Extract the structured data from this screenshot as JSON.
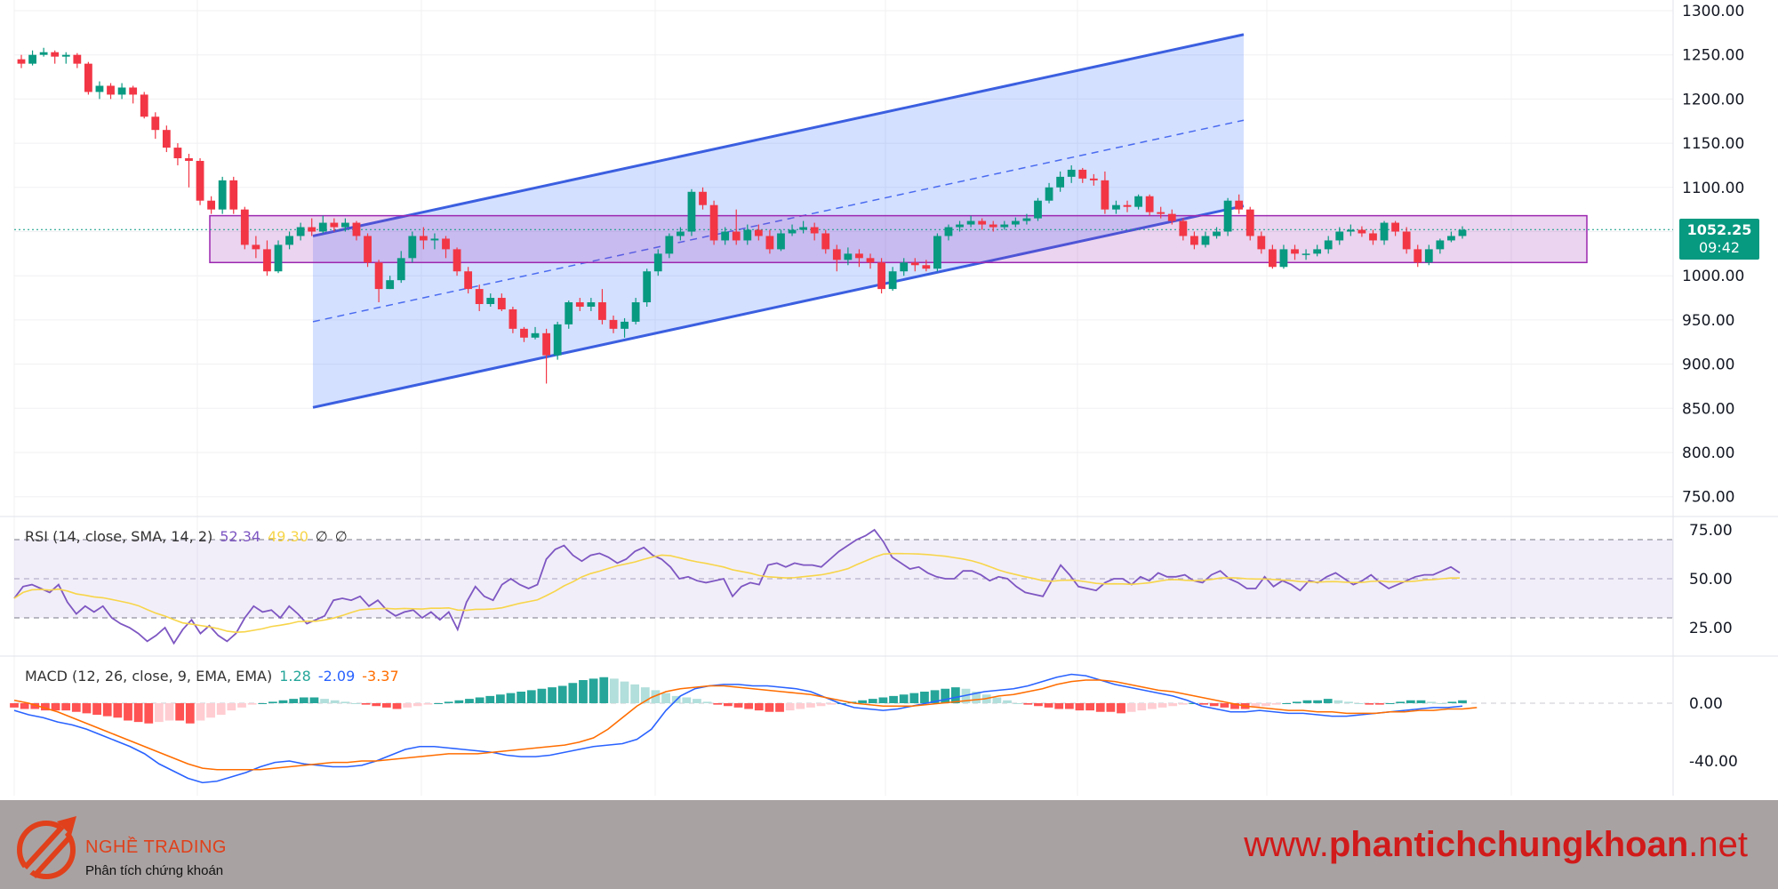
{
  "chart_data": {
    "type": "candlestick",
    "price_axis": {
      "ticks": [
        "1300.00",
        "1250.00",
        "1200.00",
        "1150.00",
        "1100.00",
        "1000.00",
        "950.00",
        "900.00",
        "850.00",
        "800.00",
        "750.00"
      ],
      "ylim": [
        730,
        1305
      ]
    },
    "last_price": {
      "value": "1052.25",
      "countdown": "09:42"
    },
    "candles": [
      [
        1245,
        1240,
        1250,
        1235
      ],
      [
        1240,
        1250,
        1255,
        1238
      ],
      [
        1250,
        1253,
        1258,
        1248
      ],
      [
        1253,
        1248,
        1255,
        1240
      ],
      [
        1248,
        1250,
        1253,
        1240
      ],
      [
        1250,
        1240,
        1252,
        1235
      ],
      [
        1240,
        1208,
        1242,
        1205
      ],
      [
        1208,
        1215,
        1220,
        1200
      ],
      [
        1215,
        1205,
        1218,
        1200
      ],
      [
        1205,
        1213,
        1218,
        1200
      ],
      [
        1213,
        1205,
        1215,
        1195
      ],
      [
        1205,
        1180,
        1208,
        1178
      ],
      [
        1180,
        1165,
        1185,
        1155
      ],
      [
        1165,
        1145,
        1170,
        1140
      ],
      [
        1145,
        1133,
        1150,
        1125
      ],
      [
        1133,
        1130,
        1138,
        1100
      ],
      [
        1130,
        1085,
        1133,
        1080
      ],
      [
        1085,
        1075,
        1090,
        1070
      ],
      [
        1075,
        1108,
        1112,
        1070
      ],
      [
        1108,
        1075,
        1112,
        1070
      ],
      [
        1075,
        1035,
        1078,
        1030
      ],
      [
        1035,
        1030,
        1045,
        1020
      ],
      [
        1030,
        1005,
        1040,
        1000
      ],
      [
        1005,
        1035,
        1040,
        1003
      ],
      [
        1035,
        1045,
        1050,
        1030
      ],
      [
        1045,
        1055,
        1060,
        1040
      ],
      [
        1055,
        1050,
        1065,
        1045
      ],
      [
        1050,
        1060,
        1068,
        1048
      ],
      [
        1060,
        1055,
        1065,
        1050
      ],
      [
        1055,
        1060,
        1065,
        1050
      ],
      [
        1060,
        1045,
        1062,
        1040
      ],
      [
        1045,
        1015,
        1048,
        1010
      ],
      [
        1015,
        985,
        1018,
        970
      ],
      [
        985,
        995,
        1000,
        985
      ],
      [
        995,
        1020,
        1028,
        992
      ],
      [
        1020,
        1045,
        1050,
        1015
      ],
      [
        1045,
        1040,
        1055,
        1030
      ],
      [
        1040,
        1042,
        1048,
        1030
      ],
      [
        1042,
        1030,
        1045,
        1020
      ],
      [
        1030,
        1005,
        1032,
        1000
      ],
      [
        1005,
        985,
        1010,
        980
      ],
      [
        985,
        968,
        990,
        960
      ],
      [
        968,
        975,
        980,
        965
      ],
      [
        975,
        962,
        980,
        960
      ],
      [
        962,
        940,
        965,
        935
      ],
      [
        940,
        930,
        942,
        925
      ],
      [
        930,
        935,
        942,
        928
      ],
      [
        935,
        910,
        940,
        878
      ],
      [
        910,
        945,
        948,
        905
      ],
      [
        945,
        970,
        972,
        940
      ],
      [
        970,
        965,
        975,
        960
      ],
      [
        965,
        970,
        975,
        960
      ],
      [
        970,
        950,
        985,
        945
      ],
      [
        950,
        940,
        955,
        935
      ],
      [
        940,
        948,
        952,
        930
      ],
      [
        948,
        970,
        975,
        945
      ],
      [
        970,
        1005,
        1008,
        965
      ],
      [
        1005,
        1025,
        1030,
        1000
      ],
      [
        1025,
        1045,
        1048,
        1020
      ],
      [
        1045,
        1050,
        1055,
        1040
      ],
      [
        1050,
        1095,
        1098,
        1045
      ],
      [
        1095,
        1080,
        1100,
        1075
      ],
      [
        1080,
        1040,
        1085,
        1035
      ],
      [
        1040,
        1050,
        1055,
        1035
      ],
      [
        1050,
        1040,
        1075,
        1035
      ],
      [
        1040,
        1052,
        1058,
        1035
      ],
      [
        1052,
        1045,
        1058,
        1040
      ],
      [
        1045,
        1030,
        1052,
        1025
      ],
      [
        1030,
        1048,
        1052,
        1028
      ],
      [
        1048,
        1052,
        1058,
        1045
      ],
      [
        1052,
        1055,
        1062,
        1048
      ],
      [
        1055,
        1048,
        1060,
        1040
      ],
      [
        1048,
        1030,
        1052,
        1025
      ],
      [
        1030,
        1018,
        1035,
        1005
      ],
      [
        1018,
        1025,
        1032,
        1012
      ],
      [
        1025,
        1020,
        1030,
        1010
      ],
      [
        1020,
        1015,
        1025,
        1008
      ],
      [
        1015,
        985,
        1020,
        980
      ],
      [
        985,
        1005,
        1010,
        983
      ],
      [
        1005,
        1015,
        1020,
        1000
      ],
      [
        1015,
        1012,
        1020,
        1005
      ],
      [
        1012,
        1008,
        1018,
        1005
      ],
      [
        1008,
        1045,
        1048,
        1005
      ],
      [
        1045,
        1055,
        1058,
        1040
      ],
      [
        1055,
        1058,
        1062,
        1050
      ],
      [
        1058,
        1062,
        1068,
        1055
      ],
      [
        1062,
        1058,
        1065,
        1052
      ],
      [
        1058,
        1055,
        1062,
        1050
      ],
      [
        1055,
        1058,
        1062,
        1052
      ],
      [
        1058,
        1062,
        1066,
        1055
      ],
      [
        1062,
        1065,
        1070,
        1058
      ],
      [
        1065,
        1085,
        1088,
        1062
      ],
      [
        1085,
        1100,
        1105,
        1082
      ],
      [
        1100,
        1112,
        1118,
        1095
      ],
      [
        1112,
        1120,
        1125,
        1105
      ],
      [
        1120,
        1110,
        1122,
        1105
      ],
      [
        1110,
        1108,
        1115,
        1102
      ],
      [
        1108,
        1075,
        1118,
        1070
      ],
      [
        1075,
        1080,
        1085,
        1070
      ],
      [
        1080,
        1078,
        1085,
        1072
      ],
      [
        1078,
        1090,
        1092,
        1075
      ],
      [
        1090,
        1072,
        1092,
        1068
      ],
      [
        1072,
        1070,
        1078,
        1065
      ],
      [
        1070,
        1062,
        1075,
        1058
      ],
      [
        1062,
        1045,
        1065,
        1040
      ],
      [
        1045,
        1035,
        1050,
        1030
      ],
      [
        1035,
        1045,
        1050,
        1032
      ],
      [
        1045,
        1050,
        1055,
        1042
      ],
      [
        1050,
        1085,
        1088,
        1045
      ],
      [
        1085,
        1075,
        1092,
        1070
      ],
      [
        1075,
        1045,
        1078,
        1040
      ],
      [
        1045,
        1030,
        1050,
        1025
      ],
      [
        1030,
        1010,
        1035,
        1008
      ],
      [
        1010,
        1030,
        1035,
        1008
      ],
      [
        1030,
        1025,
        1035,
        1018
      ],
      [
        1025,
        1025,
        1030,
        1018
      ],
      [
        1025,
        1030,
        1035,
        1022
      ],
      [
        1030,
        1040,
        1045,
        1025
      ],
      [
        1040,
        1050,
        1055,
        1035
      ],
      [
        1050,
        1052,
        1058,
        1045
      ],
      [
        1052,
        1048,
        1056,
        1044
      ],
      [
        1048,
        1040,
        1052,
        1035
      ],
      [
        1040,
        1060,
        1062,
        1035
      ],
      [
        1060,
        1050,
        1062,
        1045
      ],
      [
        1050,
        1030,
        1055,
        1025
      ],
      [
        1030,
        1015,
        1035,
        1010
      ],
      [
        1015,
        1030,
        1035,
        1012
      ],
      [
        1030,
        1040,
        1042,
        1025
      ],
      [
        1040,
        1045,
        1050,
        1038
      ],
      [
        1045,
        1052,
        1056,
        1042
      ]
    ],
    "channel": {
      "upper": [
        [
          352,
          1045
        ],
        [
          1399,
          1273
        ]
      ],
      "middle": [
        [
          352,
          948
        ],
        [
          1399,
          1176
        ]
      ],
      "lower": [
        [
          352,
          851
        ],
        [
          1399,
          1079
        ]
      ]
    },
    "zone": {
      "from_bar": 169,
      "to_bar": 1399,
      "top": 1068,
      "bottom": 1015
    },
    "rsi": {
      "legend": {
        "label": "RSI (14, close, SMA, 14, 2)",
        "rsi_value": "52.34",
        "sma_value": "49.30",
        "extra1": "∅",
        "extra2": "∅"
      },
      "ticks": [
        "75.00",
        "50.00",
        "25.00"
      ],
      "bands": [
        70,
        50,
        30
      ],
      "rsi": [
        40,
        46,
        47,
        45,
        43,
        47,
        38,
        32,
        36,
        33,
        36,
        30,
        27,
        25,
        22,
        18,
        21,
        25,
        17,
        24,
        29,
        22,
        26,
        21,
        18,
        22,
        30,
        36,
        33,
        34,
        30,
        36,
        32,
        27,
        29,
        31,
        39,
        40,
        39,
        41,
        36,
        39,
        34,
        31,
        33,
        34,
        30,
        33,
        29,
        33,
        24,
        38,
        46,
        41,
        39,
        47,
        50,
        47,
        45,
        47,
        60,
        65,
        67,
        62,
        59,
        62,
        63,
        61,
        58,
        60,
        64,
        66,
        62,
        60,
        56,
        50,
        51,
        49,
        48,
        49,
        50,
        41,
        46,
        48,
        47,
        57,
        58,
        56,
        58,
        57,
        57,
        56,
        60,
        64,
        67,
        70,
        72,
        75,
        69,
        61,
        58,
        55,
        56,
        53,
        51,
        50,
        50,
        54,
        54,
        52,
        49,
        51,
        50,
        46,
        43,
        42,
        41,
        49,
        57,
        52,
        46,
        45,
        44,
        48,
        50,
        50,
        47,
        51,
        49,
        53,
        51,
        51,
        52,
        49,
        48,
        52,
        54,
        50,
        48,
        45,
        45,
        51,
        46,
        49,
        47,
        44,
        49,
        48,
        51,
        53,
        50,
        47,
        49,
        52,
        48,
        45,
        47,
        49,
        51,
        52,
        52,
        54,
        56,
        53
      ]
    },
    "macd": {
      "legend": {
        "label": "MACD (12, 26, close, 9, EMA, EMA)",
        "hist": "1.28",
        "macd": "-2.09",
        "signal": "-3.37"
      },
      "ticks": [
        "0.00",
        "-40.00"
      ],
      "macd": [
        -5,
        -8,
        -10,
        -13,
        -15,
        -18,
        -22,
        -26,
        -30,
        -35,
        -42,
        -47,
        -52,
        -55,
        -54,
        -51,
        -48,
        -44,
        -41,
        -40,
        -42,
        -43,
        -44,
        -44,
        -43,
        -40,
        -36,
        -32,
        -30,
        -30,
        -31,
        -32,
        -33,
        -34,
        -36,
        -37,
        -37,
        -36,
        -34,
        -32,
        -30,
        -29,
        -28,
        -25,
        -18,
        -5,
        5,
        10,
        12,
        13,
        13,
        12,
        12,
        11,
        10,
        8,
        4,
        0,
        -3,
        -4,
        -5,
        -4,
        -2,
        0,
        2,
        4,
        6,
        8,
        9,
        10,
        12,
        15,
        18,
        20,
        19,
        16,
        13,
        11,
        9,
        7,
        5,
        2,
        -2,
        -4,
        -6,
        -6,
        -5,
        -6,
        -7,
        -7,
        -8,
        -9,
        -9,
        -8,
        -7,
        -6,
        -5,
        -4,
        -3,
        -3,
        -2
      ],
      "signal": [
        2,
        0,
        -3,
        -6,
        -10,
        -14,
        -18,
        -22,
        -26,
        -30,
        -34,
        -38,
        -42,
        -45,
        -46,
        -46,
        -46,
        -46,
        -45,
        -44,
        -43,
        -42,
        -41,
        -41,
        -40,
        -40,
        -39,
        -38,
        -37,
        -36,
        -35,
        -35,
        -35,
        -34,
        -33,
        -32,
        -31,
        -30,
        -29,
        -27,
        -24,
        -18,
        -10,
        -2,
        4,
        8,
        10,
        11,
        12,
        12,
        11,
        10,
        9,
        8,
        7,
        6,
        4,
        2,
        0,
        -1,
        -2,
        -2,
        -2,
        -1,
        0,
        1,
        2,
        3,
        5,
        6,
        8,
        10,
        13,
        15,
        16,
        16,
        15,
        13,
        11,
        9,
        8,
        6,
        4,
        2,
        0,
        -2,
        -3,
        -4,
        -5,
        -5,
        -6,
        -6,
        -7,
        -7,
        -7,
        -6,
        -6,
        -5,
        -5,
        -4,
        -4,
        -3
      ],
      "hist": [
        -3,
        -4,
        -4,
        -5,
        -5,
        -5,
        -6,
        -7,
        -8,
        -9,
        -10,
        -12,
        -13,
        -14,
        -13,
        -12,
        -12,
        -14,
        -12,
        -10,
        -8,
        -5,
        -3,
        -1,
        0,
        1,
        2,
        3,
        4,
        4,
        3,
        2,
        1,
        0,
        -1,
        -2,
        -3,
        -4,
        -3,
        -2,
        -1,
        0,
        1,
        2,
        3,
        4,
        5,
        6,
        7,
        8,
        9,
        10,
        11,
        12,
        14,
        16,
        17,
        18,
        17,
        15,
        13,
        11,
        9,
        7,
        5,
        4,
        3,
        1,
        -1,
        -2,
        -3,
        -4,
        -5,
        -6,
        -6,
        -5,
        -4,
        -3,
        -2,
        -1,
        0,
        1,
        2,
        3,
        4,
        5,
        6,
        7,
        8,
        9,
        10,
        11,
        10,
        8,
        6,
        4,
        2,
        0,
        -1,
        -2,
        -3,
        -4,
        -4,
        -5,
        -5,
        -6,
        -6,
        -7,
        -6,
        -5,
        -4,
        -3,
        -2,
        -1,
        0,
        -1,
        -2,
        -3,
        -4,
        -4,
        -3,
        -2,
        -1,
        0,
        1,
        2,
        2,
        3,
        2,
        1,
        0,
        -1,
        -1,
        0,
        1,
        2,
        2,
        1,
        0,
        1,
        2
      ]
    }
  },
  "footer": {
    "brand": "NGHỀ TRADING",
    "tagline": "Phân tích chứng khoán",
    "site_prefix": "www.",
    "site_main": "phantichchungkhoan",
    "site_suffix": ".net"
  }
}
